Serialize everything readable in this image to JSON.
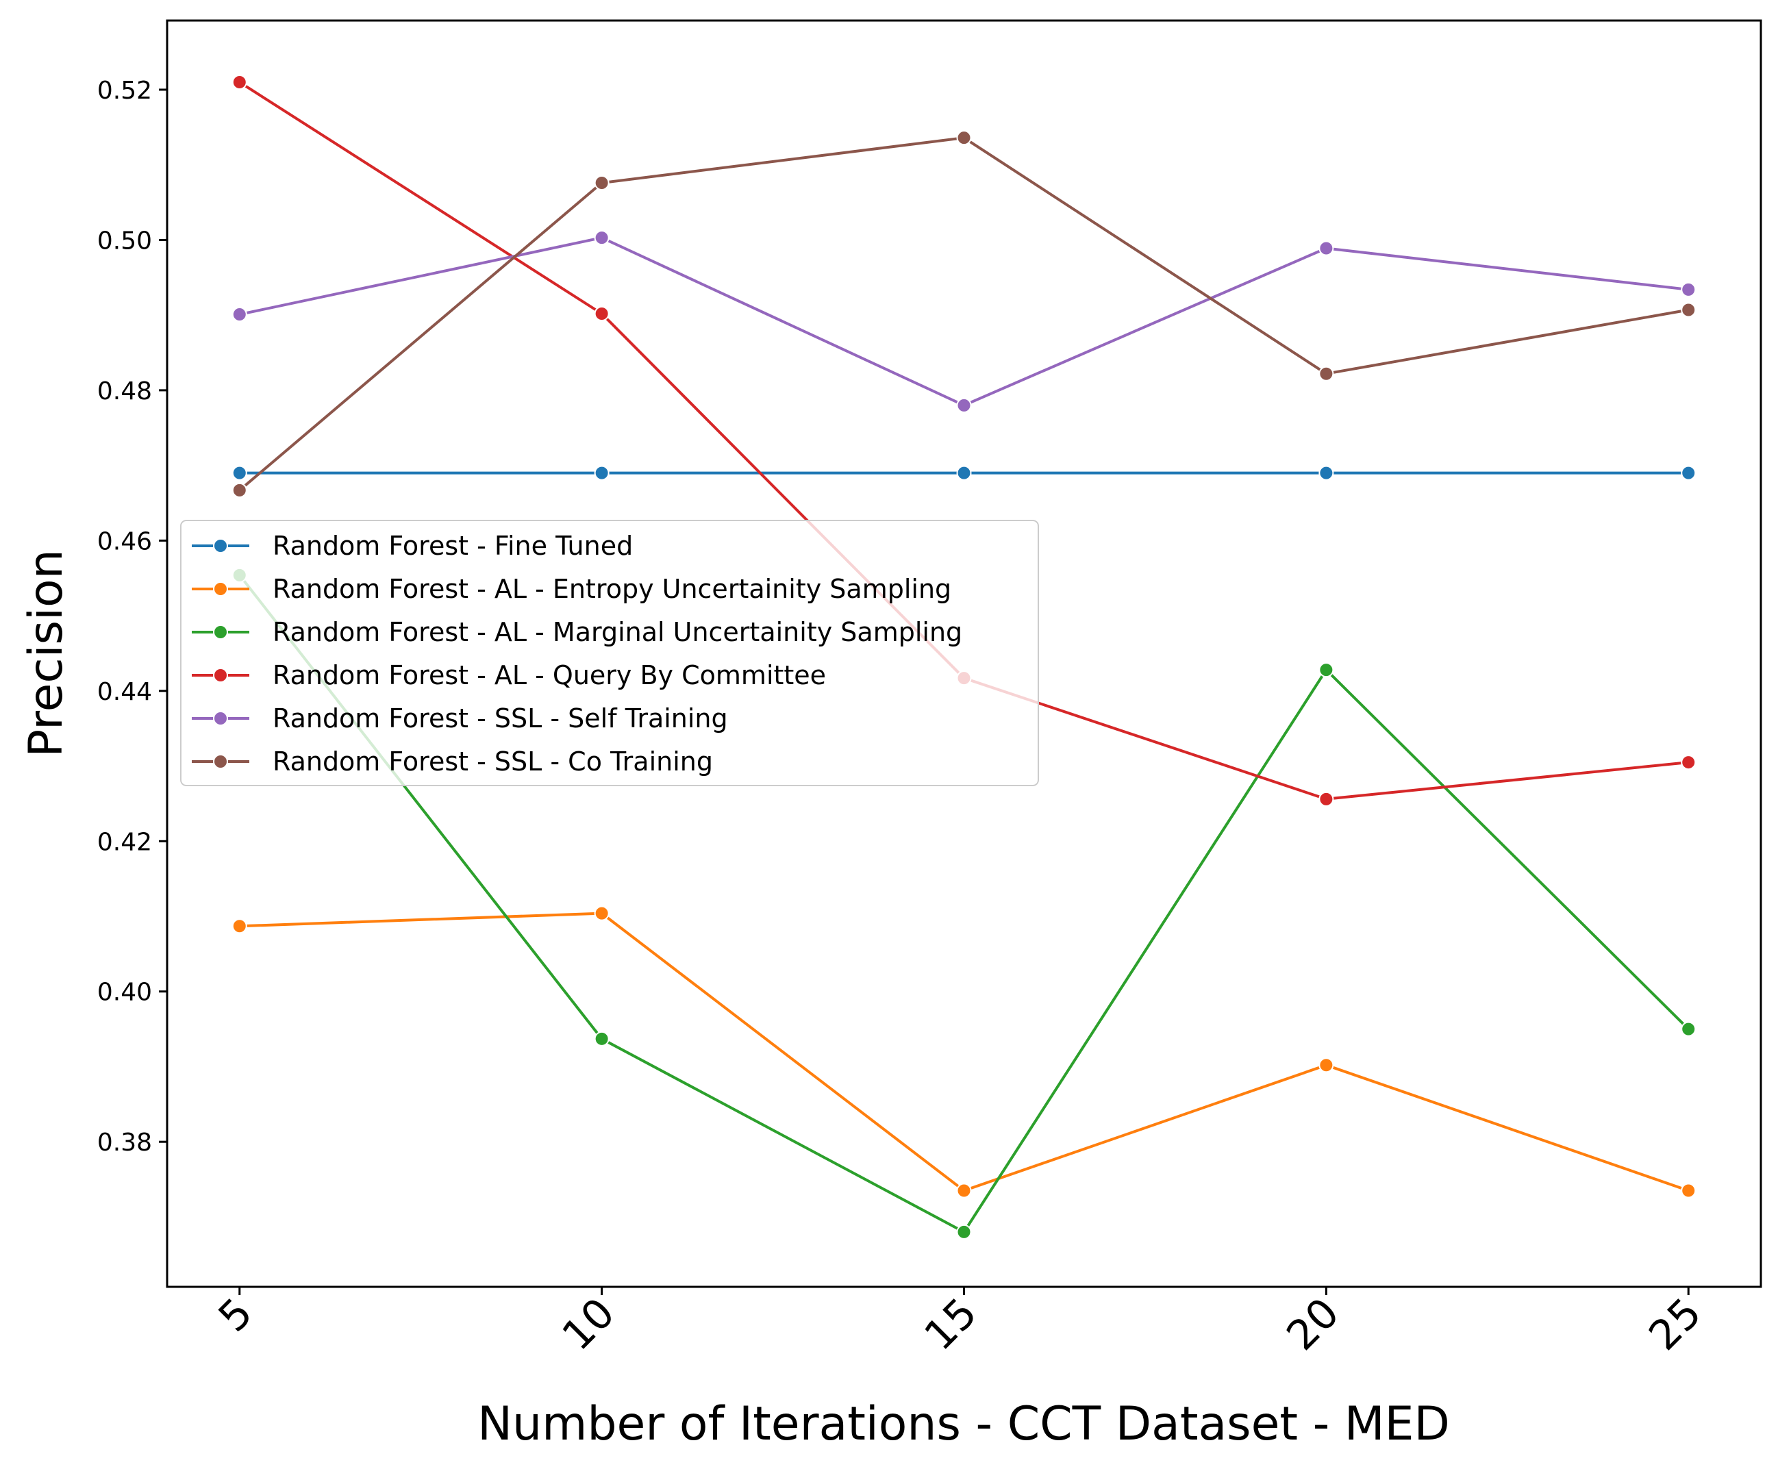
{
  "chart_data": {
    "type": "line",
    "xlabel": "Number of Iterations - CCT Dataset - MED",
    "ylabel": "Precision",
    "x": [
      5,
      10,
      15,
      20,
      25
    ],
    "xlim": [
      4.0,
      26.0
    ],
    "ylim": [
      0.3607,
      0.5292
    ],
    "x_ticks": [
      "5",
      "10",
      "15",
      "20",
      "25"
    ],
    "y_ticks": [
      "0.38",
      "0.40",
      "0.42",
      "0.44",
      "0.46",
      "0.48",
      "0.50",
      "0.52"
    ],
    "grid": false,
    "legend_position": "center-left",
    "series": [
      {
        "name": "Random Forest - Fine Tuned",
        "color": "#1f77b4",
        "values": [
          0.469,
          0.469,
          0.469,
          0.469,
          0.469
        ]
      },
      {
        "name": "Random Forest - AL - Entropy Uncertainity Sampling",
        "color": "#ff7f0e",
        "values": [
          0.4087,
          0.4104,
          0.3735,
          0.3902,
          0.3735
        ]
      },
      {
        "name": "Random Forest - AL - Marginal Uncertainity Sampling",
        "color": "#2ca02c",
        "values": [
          0.4554,
          0.3937,
          0.368,
          0.4428,
          0.395
        ]
      },
      {
        "name": "Random Forest - AL - Query By Committee",
        "color": "#d62728",
        "values": [
          0.521,
          0.4902,
          0.4417,
          0.4256,
          0.4305
        ]
      },
      {
        "name": "Random Forest - SSL - Self Training",
        "color": "#9467bd",
        "values": [
          0.4901,
          0.5003,
          0.478,
          0.4989,
          0.4934
        ]
      },
      {
        "name": "Random Forest - SSL - Co Training",
        "color": "#8c564b",
        "values": [
          0.4667,
          0.5076,
          0.5136,
          0.4822,
          0.4907
        ]
      }
    ]
  }
}
